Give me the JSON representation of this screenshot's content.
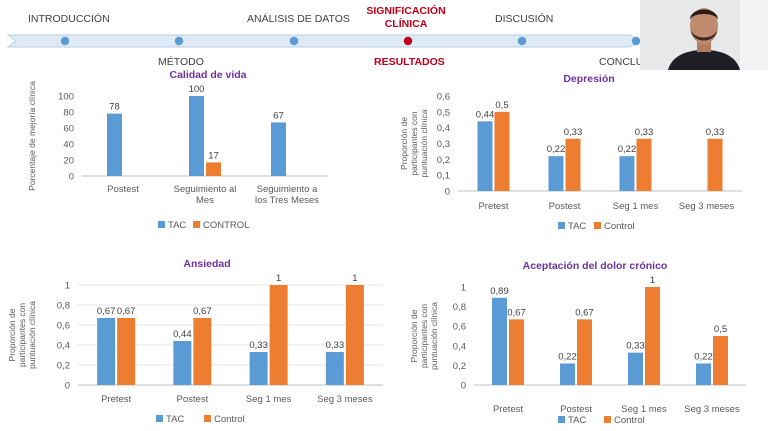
{
  "nav": {
    "intro": "INTRODUCCIÓN",
    "analysis": "ANÁLISIS DE DATOS",
    "significance_line1": "SIGNIFICACIÓN",
    "significance_line2": "CLÍNICA",
    "discussion": "DISCUSIÓN",
    "method": "MÉTODO",
    "results": "RESULTADOS",
    "conclusions": "CONCLU"
  },
  "colors": {
    "tac": "#5b9bd5",
    "control": "#ed7d31",
    "accent_red": "#c0001a",
    "title_purple": "#7030a0",
    "timeline_dot": "#5b9bd5"
  },
  "chart_data": [
    {
      "id": "calidad",
      "type": "bar",
      "title": "Calidad de vida",
      "ylabel": "Porcentaje de mejoría clínica",
      "ylim": [
        0,
        100
      ],
      "yticks": [
        "0",
        "20",
        "40",
        "60",
        "80",
        "100"
      ],
      "categories": [
        [
          "Postest"
        ],
        [
          "Seguimiento al",
          "Mes"
        ],
        [
          "Seguimiento a",
          "los Tres Meses"
        ]
      ],
      "series": [
        {
          "name": "TAC",
          "values": [
            78,
            100,
            67
          ],
          "labels": [
            "78",
            "100",
            "67"
          ]
        },
        {
          "name": "CONTROL",
          "values": [
            null,
            17,
            null
          ],
          "labels": [
            "",
            "17",
            ""
          ]
        }
      ],
      "legend": "bottom"
    },
    {
      "id": "depresion",
      "type": "bar",
      "title": "Depresión",
      "ylabel": "Proporción de participantes con puntuación clínica",
      "ylim": [
        0,
        0.6
      ],
      "yticks": [
        "0",
        "0,1",
        "0,2",
        "0,3",
        "0,4",
        "0,5",
        "0,6"
      ],
      "categories": [
        [
          "Pretest"
        ],
        [
          "Postest"
        ],
        [
          "Seg 1 mes"
        ],
        [
          "Seg 3 meses"
        ]
      ],
      "series": [
        {
          "name": "TAC",
          "values": [
            0.44,
            0.22,
            0.22,
            null
          ],
          "labels": [
            "0,44",
            "0,22",
            "0,22",
            ""
          ]
        },
        {
          "name": "Control",
          "values": [
            0.5,
            0.33,
            0.33,
            0.33
          ],
          "labels": [
            "0,5",
            "0,33",
            "0,33",
            "0,33"
          ]
        }
      ],
      "legend": "bottom"
    },
    {
      "id": "ansiedad",
      "type": "bar",
      "title": "Ansiedad",
      "ylabel": "Proporción de participantes con puntuación clínica",
      "ylim": [
        0,
        1
      ],
      "yticks": [
        "0",
        "0,2",
        "0,4",
        "0,6",
        "0,8",
        "1"
      ],
      "categories": [
        [
          "Pretest"
        ],
        [
          "Postest"
        ],
        [
          "Seg 1 mes"
        ],
        [
          "Seg 3 meses"
        ]
      ],
      "series": [
        {
          "name": "TAC",
          "values": [
            0.67,
            0.44,
            0.33,
            0.33
          ],
          "labels": [
            "0,67",
            "0,44",
            "0,33",
            "0,33"
          ]
        },
        {
          "name": "Control",
          "values": [
            0.67,
            0.67,
            1,
            1
          ],
          "labels": [
            "0,67",
            "0,67",
            "1",
            "1"
          ]
        }
      ],
      "legend": "bottom"
    },
    {
      "id": "dolor",
      "type": "bar",
      "title": "Aceptación del dolor crónico",
      "ylabel": "Proporción de participantes con puntuación clínica",
      "ylim": [
        0,
        1
      ],
      "yticks": [
        "0",
        "0,2",
        "0,4",
        "0,6",
        "0,8",
        "1"
      ],
      "categories": [
        [
          "Pretest"
        ],
        [
          "Postest"
        ],
        [
          "Seg 1 mes"
        ],
        [
          "Seg 3 meses"
        ]
      ],
      "series": [
        {
          "name": "TAC",
          "values": [
            0.89,
            0.22,
            0.33,
            0.22
          ],
          "labels": [
            "0,89",
            "0,22",
            "0,33",
            "0,22"
          ]
        },
        {
          "name": "Control",
          "values": [
            0.67,
            0.67,
            1,
            0.5
          ],
          "labels": [
            "0,67",
            "0,67",
            "1",
            "0,5"
          ]
        }
      ],
      "legend": "bottom"
    }
  ]
}
